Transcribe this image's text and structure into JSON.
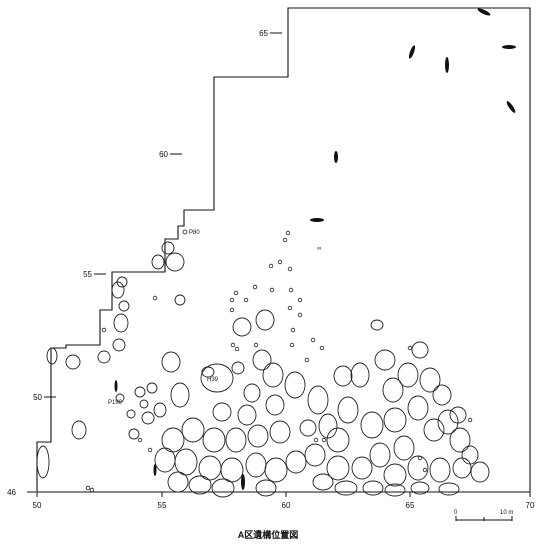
{
  "figure": {
    "caption": "A区遺構位置図",
    "background": "#ffffff",
    "ink": "#111111"
  },
  "grid": {
    "x_ticks": [
      "50",
      "55",
      "60",
      "65",
      "70"
    ],
    "y_ticks": [
      "46",
      "50",
      "55",
      "60",
      "65"
    ]
  },
  "features": {
    "labels": [
      "P80",
      "H39",
      "P190"
    ],
    "symbol": "∞"
  },
  "scale_bar": {
    "start_label": "0",
    "end_label": "10 m"
  }
}
